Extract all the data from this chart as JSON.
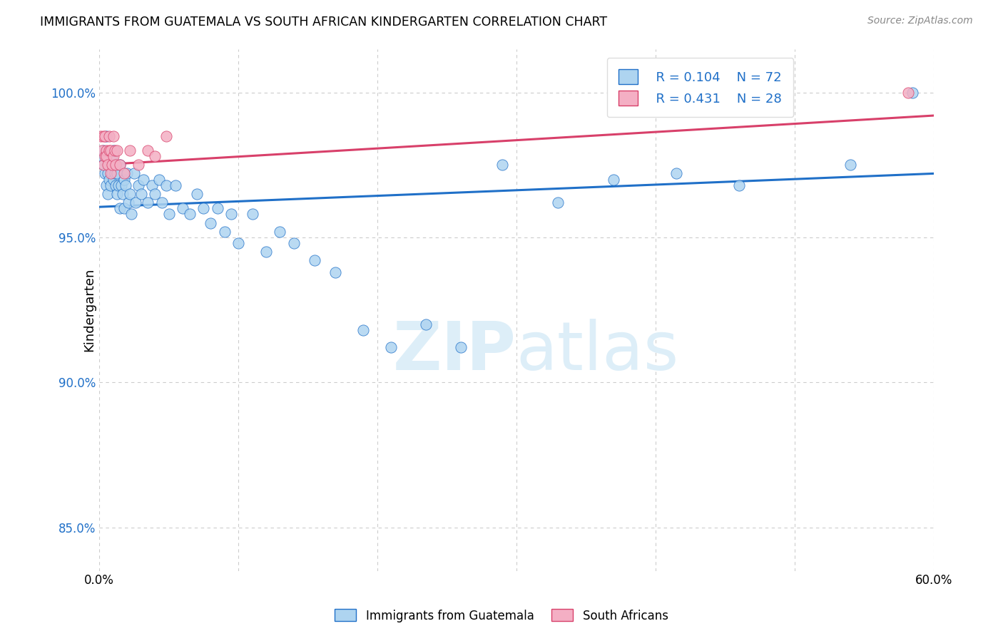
{
  "title": "IMMIGRANTS FROM GUATEMALA VS SOUTH AFRICAN KINDERGARTEN CORRELATION CHART",
  "source": "Source: ZipAtlas.com",
  "ylabel": "Kindergarten",
  "ytick_values": [
    0.85,
    0.9,
    0.95,
    1.0
  ],
  "xlim": [
    0.0,
    0.6
  ],
  "ylim": [
    0.835,
    1.015
  ],
  "legend_blue_label": "Immigrants from Guatemala",
  "legend_pink_label": "South Africans",
  "scatter_blue_color": "#aed4f0",
  "scatter_pink_color": "#f4afc4",
  "line_blue_color": "#2070c8",
  "line_pink_color": "#d8406a",
  "text_blue_color": "#2070c8",
  "text_pink_color": "#d8406a",
  "watermark_color": "#ddeef8",
  "background_color": "#ffffff",
  "grid_color": "#cccccc",
  "grid_style": "dashed",
  "blue_x": [
    0.002,
    0.003,
    0.003,
    0.004,
    0.005,
    0.005,
    0.006,
    0.006,
    0.007,
    0.007,
    0.008,
    0.008,
    0.009,
    0.009,
    0.01,
    0.01,
    0.011,
    0.012,
    0.012,
    0.013,
    0.013,
    0.014,
    0.015,
    0.015,
    0.016,
    0.017,
    0.018,
    0.018,
    0.019,
    0.02,
    0.021,
    0.022,
    0.023,
    0.025,
    0.026,
    0.028,
    0.03,
    0.032,
    0.035,
    0.038,
    0.04,
    0.043,
    0.045,
    0.048,
    0.05,
    0.055,
    0.06,
    0.065,
    0.07,
    0.075,
    0.08,
    0.085,
    0.09,
    0.095,
    0.1,
    0.11,
    0.12,
    0.13,
    0.14,
    0.155,
    0.17,
    0.19,
    0.21,
    0.235,
    0.26,
    0.29,
    0.33,
    0.37,
    0.415,
    0.46,
    0.54,
    0.585
  ],
  "blue_y": [
    0.978,
    0.975,
    0.98,
    0.972,
    0.968,
    0.985,
    0.972,
    0.965,
    0.975,
    0.97,
    0.975,
    0.968,
    0.978,
    0.972,
    0.98,
    0.97,
    0.972,
    0.968,
    0.975,
    0.965,
    0.972,
    0.968,
    0.96,
    0.975,
    0.968,
    0.965,
    0.97,
    0.96,
    0.968,
    0.972,
    0.962,
    0.965,
    0.958,
    0.972,
    0.962,
    0.968,
    0.965,
    0.97,
    0.962,
    0.968,
    0.965,
    0.97,
    0.962,
    0.968,
    0.958,
    0.968,
    0.96,
    0.958,
    0.965,
    0.96,
    0.955,
    0.96,
    0.952,
    0.958,
    0.948,
    0.958,
    0.945,
    0.952,
    0.948,
    0.942,
    0.938,
    0.918,
    0.912,
    0.92,
    0.912,
    0.975,
    0.962,
    0.97,
    0.972,
    0.968,
    0.975,
    1.0
  ],
  "pink_x": [
    0.001,
    0.002,
    0.003,
    0.003,
    0.004,
    0.004,
    0.005,
    0.005,
    0.006,
    0.007,
    0.007,
    0.008,
    0.008,
    0.009,
    0.01,
    0.01,
    0.011,
    0.012,
    0.013,
    0.015,
    0.018,
    0.022,
    0.028,
    0.035,
    0.04,
    0.048,
    0.39,
    0.582
  ],
  "pink_y": [
    0.985,
    0.98,
    0.975,
    0.985,
    0.978,
    0.985,
    0.98,
    0.978,
    0.975,
    0.98,
    0.985,
    0.972,
    0.98,
    0.975,
    0.985,
    0.978,
    0.98,
    0.975,
    0.98,
    0.975,
    0.972,
    0.98,
    0.975,
    0.98,
    0.978,
    0.985,
    1.0,
    1.0
  ],
  "blue_trend_x0": 0.0,
  "blue_trend_x1": 0.6,
  "blue_trend_y0": 0.9605,
  "blue_trend_y1": 0.972,
  "pink_trend_x0": 0.0,
  "pink_trend_x1": 0.6,
  "pink_trend_y0": 0.975,
  "pink_trend_y1": 0.992
}
